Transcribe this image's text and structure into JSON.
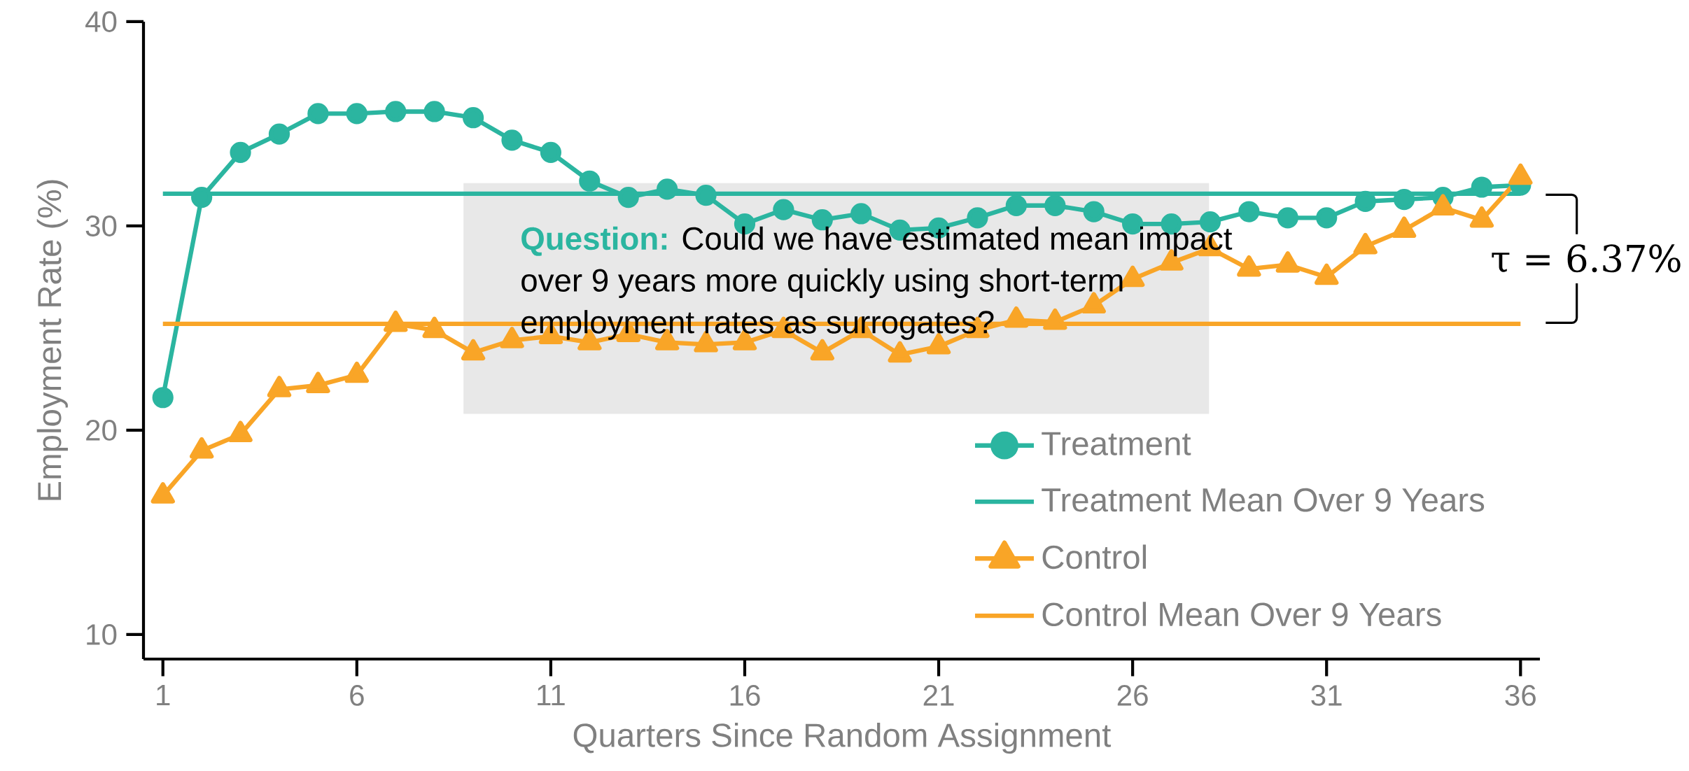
{
  "chart_data": {
    "type": "line",
    "xlabel": "Quarters Since Random Assignment",
    "ylabel": "Employment Rate (%)",
    "x": [
      1,
      2,
      3,
      4,
      5,
      6,
      7,
      8,
      9,
      10,
      11,
      12,
      13,
      14,
      15,
      16,
      17,
      18,
      19,
      20,
      21,
      22,
      23,
      24,
      25,
      26,
      27,
      28,
      29,
      30,
      31,
      32,
      33,
      34,
      35,
      36
    ],
    "series": [
      {
        "name": "Treatment",
        "color": "#2bb5a0",
        "marker": "circle",
        "values": [
          21.6,
          31.4,
          33.6,
          34.5,
          35.5,
          35.5,
          35.6,
          35.6,
          35.3,
          34.2,
          33.6,
          32.2,
          31.4,
          31.8,
          31.5,
          30.1,
          30.8,
          30.3,
          30.6,
          29.8,
          29.9,
          30.4,
          31.0,
          31.0,
          30.7,
          30.1,
          30.1,
          30.2,
          30.7,
          30.4,
          30.4,
          31.2,
          31.3,
          31.4,
          31.9,
          32.0
        ]
      },
      {
        "name": "Control",
        "color": "#f9a527",
        "marker": "triangle",
        "values": [
          16.8,
          19.0,
          19.8,
          22.0,
          22.2,
          22.7,
          25.2,
          24.9,
          23.8,
          24.4,
          24.6,
          24.3,
          24.7,
          24.3,
          24.2,
          24.3,
          24.9,
          23.8,
          24.9,
          23.7,
          24.1,
          24.9,
          25.4,
          25.3,
          26.1,
          27.4,
          28.2,
          28.9,
          27.9,
          28.1,
          27.5,
          29.0,
          29.8,
          30.9,
          30.3,
          32.4
        ]
      }
    ],
    "ref_lines": [
      {
        "axis": "y",
        "value": 31.58,
        "label": "Treatment Mean Over 9 Years",
        "color": "#2bb5a0"
      },
      {
        "axis": "y",
        "value": 25.21,
        "label": "Control Mean Over 9 Years",
        "color": "#f9a527"
      }
    ],
    "annotations": [
      "Question:",
      "Could we have estimated mean impact over 9 years more quickly using short-term employment rates as surrogates?",
      "τ = 6.37%"
    ],
    "xlim": [
      0.5,
      36.5
    ],
    "ylim": [
      8.8,
      40
    ],
    "xticks": [
      1,
      6,
      11,
      16,
      21,
      26,
      31,
      36
    ],
    "yticks": [
      10,
      20,
      30,
      40
    ],
    "grid": false,
    "legend": "bottom right",
    "line_style": "solid"
  }
}
